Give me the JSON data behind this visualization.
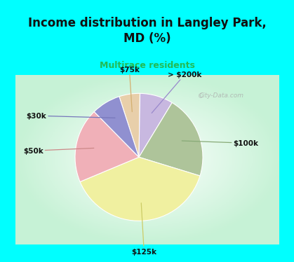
{
  "title": "Income distribution in Langley Park,\nMD (%)",
  "subtitle": "Multirace residents",
  "title_color": "#111111",
  "subtitle_color": "#22bb55",
  "background_color": "#00ffff",
  "chart_bg_color": "#d8f0e0",
  "labels": [
    "$75k",
    "> $200k",
    "$100k",
    "$125k",
    "$50k",
    "$30k"
  ],
  "values": [
    5,
    8,
    20,
    37,
    18,
    7
  ],
  "colors": [
    "#e8cfaa",
    "#c8b8e0",
    "#aec49a",
    "#f0f0a0",
    "#f0b0b8",
    "#9090d0"
  ],
  "line_colors": [
    "#d4b070",
    "#9988cc",
    "#88aa77",
    "#cccc66",
    "#cc8888",
    "#7777bb"
  ],
  "label_texts": [
    "$75k",
    "> $200k",
    "$100k",
    "$125k",
    "$50k",
    "$30k"
  ],
  "watermark": "City-Data.com",
  "start_angle": 108
}
